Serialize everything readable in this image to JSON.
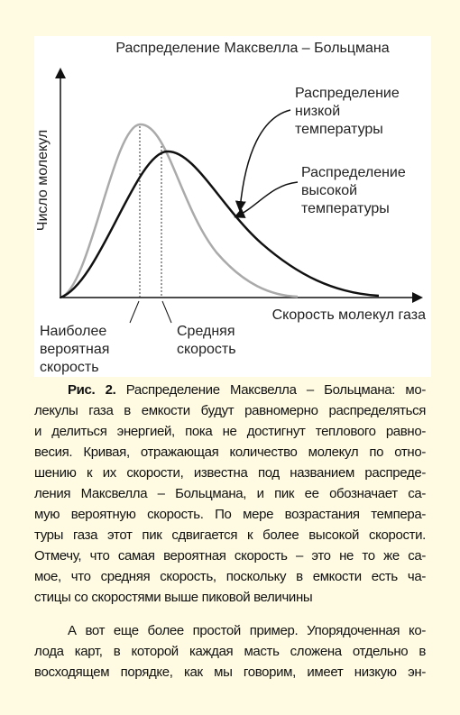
{
  "figure": {
    "title": "Распределение Максвелла – Больцмана",
    "y_axis_label": "Число молекул",
    "x_axis_label": "Скорость молекул газа",
    "annotations": {
      "low_temp": [
        "Распределение",
        "низкой",
        "температуры"
      ],
      "high_temp": [
        "Распределение",
        "высокой",
        "температуры"
      ],
      "most_probable": [
        "Наиболее",
        "вероятная",
        "скорость"
      ],
      "mean": [
        "Средняя",
        "скорость"
      ]
    }
  },
  "caption": {
    "label": "Рис. 2.",
    "lines": [
      "Распределение Максвелла – Больцмана: мо-",
      "лекулы газа в емкости будут равномерно распределяться",
      "и делиться энергией, пока не достигнут теплового равно-",
      "весия. Кривая, отражающая количество молекул по отно-",
      "шению к их скорости, известна под названием распреде-",
      "ления Максвелла – Больцмана, и пик ее обозначает са-",
      "мую вероятную скорость. По мере возрастания темпера-",
      "туры газа этот пик сдвигается к более высокой скорости.",
      "Отмечу, что самая вероятная скорость – это не то же са-",
      "мое, что средняя скорость, поскольку в емкости есть ча-",
      "стицы со скоростями выше пиковой величины"
    ]
  },
  "paragraphs": [
    {
      "lines": [
        "А вот еще более простой пример. Упорядоченная ко-",
        "лода карт, в которой каждая масть сложена отдельно в",
        "восходящем порядке, как мы говорим, имеет низкую эн-"
      ]
    }
  ]
}
